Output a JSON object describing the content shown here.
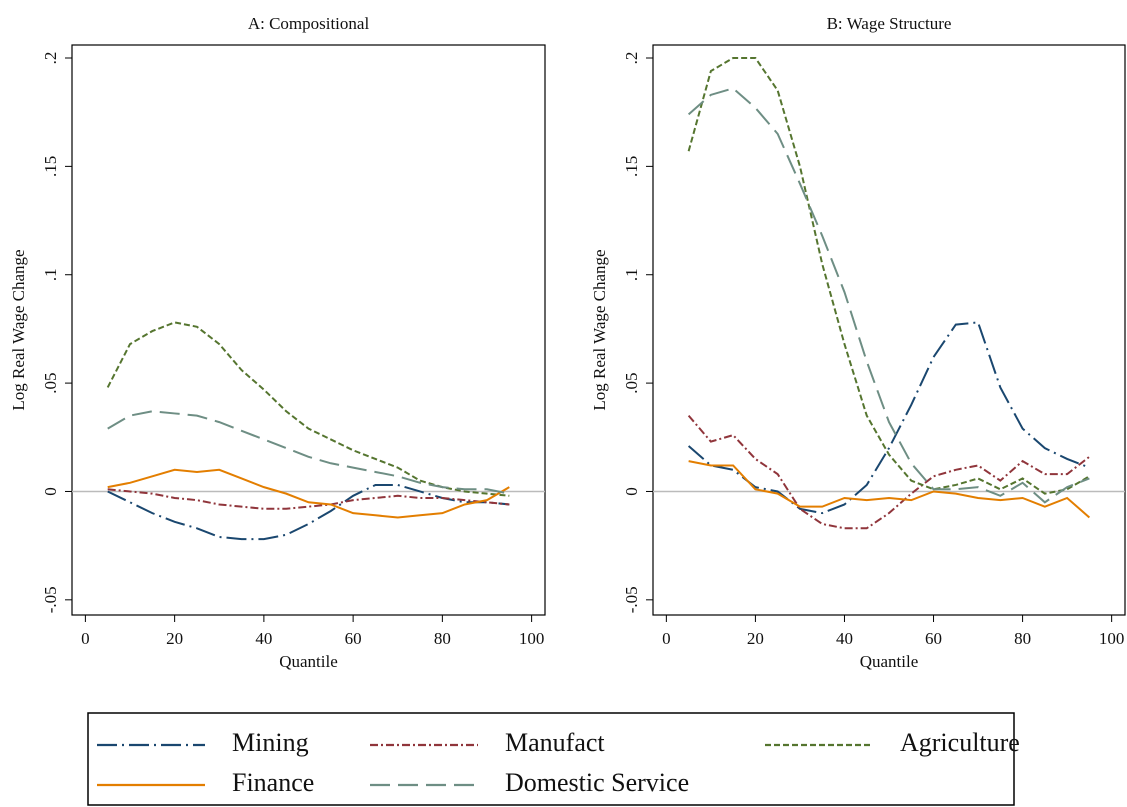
{
  "chart_data": [
    {
      "type": "line",
      "title": "A: Compositional",
      "xlabel": "Quantile",
      "ylabel": "Log Real Wage Change",
      "x": [
        5,
        10,
        15,
        20,
        25,
        30,
        35,
        40,
        45,
        50,
        55,
        60,
        65,
        70,
        75,
        80,
        85,
        90,
        95
      ],
      "xlim": [
        -3,
        103
      ],
      "xticks": [
        0,
        20,
        40,
        60,
        80,
        100
      ],
      "ylim": [
        -0.057,
        0.206
      ],
      "yticks": [
        {
          "value": -0.05,
          "label": "-.05"
        },
        0,
        {
          "value": 0.05,
          "label": ".05"
        },
        {
          "value": 0.1,
          "label": ".1"
        },
        {
          "value": 0.15,
          "label": ".15"
        },
        {
          "value": 0.2,
          "label": ".2"
        }
      ],
      "series": [
        {
          "name": "Mining",
          "color": "#1a476f",
          "values": [
            0,
            -0.005,
            -0.01,
            -0.014,
            -0.017,
            -0.021,
            -0.022,
            -0.022,
            -0.02,
            -0.015,
            -0.009,
            -0.002,
            0.003,
            0.003,
            0,
            -0.003,
            -0.005,
            -0.005,
            -0.006
          ]
        },
        {
          "name": "Manufact",
          "color": "#90353b",
          "values": [
            0.001,
            0,
            -0.001,
            -0.003,
            -0.004,
            -0.006,
            -0.007,
            -0.008,
            -0.008,
            -0.007,
            -0.006,
            -0.004,
            -0.003,
            -0.002,
            -0.003,
            -0.003,
            -0.004,
            -0.005,
            -0.006
          ]
        },
        {
          "name": "Agriculture",
          "color": "#55752f",
          "values": [
            0.048,
            0.068,
            0.074,
            0.078,
            0.076,
            0.068,
            0.056,
            0.047,
            0.037,
            0.029,
            0.024,
            0.019,
            0.015,
            0.011,
            0.005,
            0.002,
            0,
            -0.001,
            -0.002
          ]
        },
        {
          "name": "Finance",
          "color": "#e37e00",
          "values": [
            0.002,
            0.004,
            0.007,
            0.01,
            0.009,
            0.01,
            0.006,
            0.002,
            -0.001,
            -0.005,
            -0.006,
            -0.01,
            -0.011,
            -0.012,
            -0.011,
            -0.01,
            -0.006,
            -0.004,
            0.002
          ]
        },
        {
          "name": "Domestic Service",
          "color": "#6e8e84",
          "values": [
            0.029,
            0.035,
            0.037,
            0.036,
            0.035,
            0.032,
            0.028,
            0.024,
            0.02,
            0.016,
            0.013,
            0.011,
            0.009,
            0.007,
            0.004,
            0.002,
            0.001,
            0.001,
            -0.001
          ]
        }
      ]
    },
    {
      "type": "line",
      "title": "B: Wage Structure",
      "xlabel": "Quantile",
      "ylabel": "Log Real Wage Change",
      "x": [
        5,
        10,
        15,
        20,
        25,
        30,
        35,
        40,
        45,
        50,
        55,
        60,
        65,
        70,
        75,
        80,
        85,
        90,
        95
      ],
      "xlim": [
        -3,
        103
      ],
      "xticks": [
        0,
        20,
        40,
        60,
        80,
        100
      ],
      "ylim": [
        -0.057,
        0.206
      ],
      "yticks": [
        {
          "value": -0.05,
          "label": "-.05"
        },
        0,
        {
          "value": 0.05,
          "label": ".05"
        },
        {
          "value": 0.1,
          "label": ".1"
        },
        {
          "value": 0.15,
          "label": ".15"
        },
        {
          "value": 0.2,
          "label": ".2"
        }
      ],
      "series": [
        {
          "color": "#1a476f",
          "values": [
            0.021,
            0.012,
            0.01,
            0.002,
            0,
            -0.008,
            -0.01,
            -0.006,
            0.003,
            0.02,
            0.04,
            0.062,
            0.077,
            0.078,
            0.048,
            0.029,
            0.02,
            0.015,
            0.011
          ]
        },
        {
          "color": "#90353b",
          "values": [
            0.035,
            0.023,
            0.026,
            0.015,
            0.008,
            -0.008,
            -0.015,
            -0.017,
            -0.017,
            -0.01,
            -0.001,
            0.007,
            0.01,
            0.012,
            0.005,
            0.014,
            0.008,
            0.008,
            0.016
          ]
        },
        {
          "color": "#55752f",
          "values": [
            0.157,
            0.194,
            0.2,
            0.2,
            0.185,
            0.15,
            0.105,
            0.068,
            0.035,
            0.017,
            0.005,
            0.001,
            0.003,
            0.006,
            0.001,
            0.006,
            -0.001,
            0.001,
            0.007
          ]
        },
        {
          "color": "#e37e00",
          "values": [
            0.014,
            0.012,
            0.012,
            0.001,
            -0.001,
            -0.007,
            -0.007,
            -0.003,
            -0.004,
            -0.003,
            -0.004,
            0,
            -0.001,
            -0.003,
            -0.004,
            -0.003,
            -0.007,
            -0.003,
            -0.012
          ]
        },
        {
          "color": "#6e8e84",
          "values": [
            0.174,
            0.183,
            0.186,
            0.177,
            0.165,
            0.142,
            0.118,
            0.092,
            0.06,
            0.032,
            0.013,
            0.001,
            0.001,
            0.002,
            -0.002,
            0.004,
            -0.005,
            0.002,
            0.006
          ]
        }
      ]
    }
  ]
}
